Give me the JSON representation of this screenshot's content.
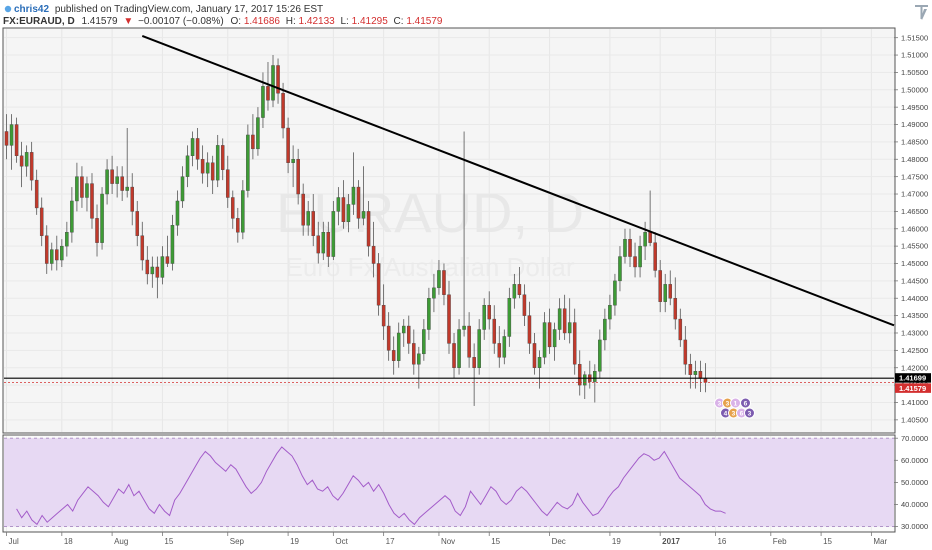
{
  "header": {
    "user": "chris42",
    "published": "published on TradingView.com, January 17, 2017 15:26 EST",
    "symbol": "FX:EURAUD, D",
    "last": "1.41579",
    "change": "−0.00107 (−0.08%)",
    "o_label": "O:",
    "o_value": "1.41686",
    "h_label": "H:",
    "h_value": "1.42133",
    "l_label": "L:",
    "l_value": "1.41295",
    "c_label": "C:",
    "c_value": "1.41579"
  },
  "watermark": {
    "symbol": "EURAUD, D",
    "name": "Euro Fx/Australian Dollar"
  },
  "colors": {
    "up": "#3d9b35",
    "down": "#c0392b",
    "trendline": "#000000",
    "rsi_line": "#a35cc9",
    "rsi_band": "#e7d9f3",
    "price_tag_dark": "#000000",
    "price_tag_red": "#d32f2f",
    "header_down": "#d32f2f"
  },
  "chart_data": [
    {
      "type": "candlestick",
      "title": "",
      "xlabel": "",
      "ylabel": "",
      "ylim": [
        1.4015,
        1.5175
      ],
      "y_ticks": [
        1.405,
        1.41,
        1.415,
        1.42,
        1.425,
        1.43,
        1.435,
        1.44,
        1.445,
        1.45,
        1.455,
        1.46,
        1.465,
        1.47,
        1.475,
        1.48,
        1.485,
        1.49,
        1.495,
        1.5,
        1.505,
        1.51,
        1.515
      ],
      "x_ticks": [
        {
          "label": "Jul",
          "i": 0
        },
        {
          "label": "18",
          "i": 11
        },
        {
          "label": "Aug",
          "i": 21
        },
        {
          "label": "15",
          "i": 31
        },
        {
          "label": "Sep",
          "i": 44
        },
        {
          "label": "19",
          "i": 56
        },
        {
          "label": "Oct",
          "i": 65
        },
        {
          "label": "17",
          "i": 75
        },
        {
          "label": "Nov",
          "i": 86
        },
        {
          "label": "15",
          "i": 96
        },
        {
          "label": "Dec",
          "i": 108
        },
        {
          "label": "19",
          "i": 120
        },
        {
          "label": "2017",
          "i": 130
        },
        {
          "label": "16",
          "i": 141
        },
        {
          "label": "Feb",
          "i": 152
        },
        {
          "label": "15",
          "i": 162
        },
        {
          "label": "Mar",
          "i": 172
        }
      ],
      "x_count": 177,
      "candles": [
        [
          1.488,
          1.493,
          1.48,
          1.484
        ],
        [
          1.484,
          1.493,
          1.477,
          1.49
        ],
        [
          1.49,
          1.492,
          1.479,
          1.481
        ],
        [
          1.481,
          1.485,
          1.472,
          1.478
        ],
        [
          1.478,
          1.484,
          1.475,
          1.482
        ],
        [
          1.482,
          1.485,
          1.471,
          1.474
        ],
        [
          1.474,
          1.477,
          1.464,
          1.466
        ],
        [
          1.466,
          1.469,
          1.455,
          1.458
        ],
        [
          1.458,
          1.461,
          1.447,
          1.45
        ],
        [
          1.45,
          1.456,
          1.448,
          1.454
        ],
        [
          1.454,
          1.458,
          1.448,
          1.451
        ],
        [
          1.451,
          1.457,
          1.449,
          1.455
        ],
        [
          1.455,
          1.462,
          1.452,
          1.459
        ],
        [
          1.459,
          1.472,
          1.456,
          1.468
        ],
        [
          1.468,
          1.479,
          1.465,
          1.475
        ],
        [
          1.475,
          1.478,
          1.466,
          1.469
        ],
        [
          1.469,
          1.475,
          1.465,
          1.473
        ],
        [
          1.473,
          1.476,
          1.46,
          1.463
        ],
        [
          1.463,
          1.467,
          1.452,
          1.456
        ],
        [
          1.456,
          1.472,
          1.454,
          1.47
        ],
        [
          1.47,
          1.48,
          1.467,
          1.477
        ],
        [
          1.477,
          1.481,
          1.47,
          1.473
        ],
        [
          1.473,
          1.478,
          1.469,
          1.475
        ],
        [
          1.475,
          1.478,
          1.468,
          1.471
        ],
        [
          1.471,
          1.489,
          1.469,
          1.472
        ],
        [
          1.472,
          1.476,
          1.461,
          1.465
        ],
        [
          1.465,
          1.468,
          1.455,
          1.458
        ],
        [
          1.458,
          1.462,
          1.448,
          1.451
        ],
        [
          1.451,
          1.455,
          1.444,
          1.447
        ],
        [
          1.447,
          1.452,
          1.443,
          1.449
        ],
        [
          1.449,
          1.452,
          1.44,
          1.446
        ],
        [
          1.446,
          1.455,
          1.444,
          1.452
        ],
        [
          1.452,
          1.458,
          1.449,
          1.45
        ],
        [
          1.45,
          1.464,
          1.448,
          1.461
        ],
        [
          1.461,
          1.471,
          1.458,
          1.468
        ],
        [
          1.468,
          1.478,
          1.466,
          1.475
        ],
        [
          1.475,
          1.484,
          1.472,
          1.481
        ],
        [
          1.481,
          1.488,
          1.478,
          1.486
        ],
        [
          1.486,
          1.489,
          1.477,
          1.48
        ],
        [
          1.48,
          1.484,
          1.473,
          1.476
        ],
        [
          1.476,
          1.482,
          1.472,
          1.479
        ],
        [
          1.479,
          1.481,
          1.47,
          1.474
        ],
        [
          1.474,
          1.487,
          1.472,
          1.484
        ],
        [
          1.484,
          1.486,
          1.474,
          1.477
        ],
        [
          1.477,
          1.481,
          1.466,
          1.469
        ],
        [
          1.469,
          1.471,
          1.46,
          1.463
        ],
        [
          1.463,
          1.466,
          1.456,
          1.459
        ],
        [
          1.459,
          1.474,
          1.457,
          1.471
        ],
        [
          1.471,
          1.49,
          1.469,
          1.487
        ],
        [
          1.487,
          1.493,
          1.48,
          1.483
        ],
        [
          1.483,
          1.495,
          1.481,
          1.492
        ],
        [
          1.492,
          1.505,
          1.489,
          1.501
        ],
        [
          1.501,
          1.508,
          1.494,
          1.497
        ],
        [
          1.497,
          1.51,
          1.495,
          1.507
        ],
        [
          1.507,
          1.509,
          1.496,
          1.499
        ],
        [
          1.499,
          1.502,
          1.486,
          1.489
        ],
        [
          1.489,
          1.492,
          1.476,
          1.479
        ],
        [
          1.479,
          1.484,
          1.472,
          1.48
        ],
        [
          1.48,
          1.483,
          1.467,
          1.47
        ],
        [
          1.47,
          1.473,
          1.458,
          1.461
        ],
        [
          1.461,
          1.468,
          1.458,
          1.465
        ],
        [
          1.465,
          1.47,
          1.455,
          1.458
        ],
        [
          1.458,
          1.462,
          1.45,
          1.453
        ],
        [
          1.453,
          1.462,
          1.451,
          1.459
        ],
        [
          1.459,
          1.462,
          1.449,
          1.452
        ],
        [
          1.452,
          1.468,
          1.451,
          1.465
        ],
        [
          1.465,
          1.472,
          1.461,
          1.469
        ],
        [
          1.469,
          1.474,
          1.46,
          1.462
        ],
        [
          1.462,
          1.47,
          1.459,
          1.467
        ],
        [
          1.467,
          1.482,
          1.464,
          1.472
        ],
        [
          1.472,
          1.474,
          1.46,
          1.463
        ],
        [
          1.463,
          1.478,
          1.461,
          1.465
        ],
        [
          1.465,
          1.468,
          1.452,
          1.455
        ],
        [
          1.455,
          1.462,
          1.446,
          1.45
        ],
        [
          1.45,
          1.453,
          1.435,
          1.438
        ],
        [
          1.438,
          1.444,
          1.428,
          1.432
        ],
        [
          1.432,
          1.436,
          1.422,
          1.425
        ],
        [
          1.425,
          1.429,
          1.418,
          1.422
        ],
        [
          1.422,
          1.433,
          1.42,
          1.43
        ],
        [
          1.43,
          1.434,
          1.426,
          1.432
        ],
        [
          1.432,
          1.435,
          1.424,
          1.427
        ],
        [
          1.427,
          1.431,
          1.418,
          1.421
        ],
        [
          1.421,
          1.426,
          1.414,
          1.424
        ],
        [
          1.424,
          1.434,
          1.422,
          1.431
        ],
        [
          1.431,
          1.443,
          1.428,
          1.44
        ],
        [
          1.44,
          1.447,
          1.436,
          1.443
        ],
        [
          1.443,
          1.451,
          1.441,
          1.448
        ],
        [
          1.448,
          1.45,
          1.438,
          1.441
        ],
        [
          1.441,
          1.445,
          1.424,
          1.427
        ],
        [
          1.427,
          1.43,
          1.417,
          1.42
        ],
        [
          1.42,
          1.434,
          1.418,
          1.431
        ],
        [
          1.431,
          1.488,
          1.429,
          1.432
        ],
        [
          1.432,
          1.436,
          1.42,
          1.423
        ],
        [
          1.423,
          1.427,
          1.409,
          1.42
        ],
        [
          1.42,
          1.434,
          1.418,
          1.431
        ],
        [
          1.431,
          1.44,
          1.428,
          1.438
        ],
        [
          1.438,
          1.442,
          1.431,
          1.434
        ],
        [
          1.434,
          1.438,
          1.424,
          1.427
        ],
        [
          1.427,
          1.432,
          1.42,
          1.423
        ],
        [
          1.423,
          1.431,
          1.421,
          1.429
        ],
        [
          1.429,
          1.443,
          1.426,
          1.44
        ],
        [
          1.44,
          1.447,
          1.437,
          1.444
        ],
        [
          1.444,
          1.449,
          1.44,
          1.441
        ],
        [
          1.441,
          1.444,
          1.432,
          1.435
        ],
        [
          1.435,
          1.439,
          1.424,
          1.427
        ],
        [
          1.427,
          1.43,
          1.418,
          1.42
        ],
        [
          1.42,
          1.425,
          1.414,
          1.423
        ],
        [
          1.423,
          1.436,
          1.421,
          1.433
        ],
        [
          1.433,
          1.437,
          1.424,
          1.426
        ],
        [
          1.426,
          1.433,
          1.422,
          1.431
        ],
        [
          1.431,
          1.44,
          1.428,
          1.437
        ],
        [
          1.437,
          1.441,
          1.428,
          1.43
        ],
        [
          1.43,
          1.44,
          1.427,
          1.433
        ],
        [
          1.433,
          1.437,
          1.418,
          1.421
        ],
        [
          1.421,
          1.425,
          1.412,
          1.415
        ],
        [
          1.415,
          1.419,
          1.411,
          1.418
        ],
        [
          1.418,
          1.422,
          1.414,
          1.416
        ],
        [
          1.416,
          1.421,
          1.41,
          1.419
        ],
        [
          1.419,
          1.431,
          1.417,
          1.428
        ],
        [
          1.428,
          1.437,
          1.425,
          1.434
        ],
        [
          1.434,
          1.441,
          1.431,
          1.438
        ],
        [
          1.438,
          1.447,
          1.435,
          1.445
        ],
        [
          1.445,
          1.455,
          1.442,
          1.452
        ],
        [
          1.452,
          1.46,
          1.45,
          1.457
        ],
        [
          1.457,
          1.46,
          1.449,
          1.452
        ],
        [
          1.452,
          1.456,
          1.446,
          1.449
        ],
        [
          1.449,
          1.458,
          1.446,
          1.455
        ],
        [
          1.455,
          1.462,
          1.451,
          1.459
        ],
        [
          1.459,
          1.471,
          1.455,
          1.456
        ],
        [
          1.456,
          1.459,
          1.446,
          1.448
        ],
        [
          1.448,
          1.451,
          1.436,
          1.439
        ],
        [
          1.439,
          1.447,
          1.436,
          1.444
        ],
        [
          1.444,
          1.448,
          1.438,
          1.44
        ],
        [
          1.44,
          1.446,
          1.431,
          1.434
        ],
        [
          1.434,
          1.437,
          1.426,
          1.428
        ],
        [
          1.428,
          1.432,
          1.418,
          1.421
        ],
        [
          1.421,
          1.424,
          1.414,
          1.418
        ],
        [
          1.418,
          1.422,
          1.414,
          1.419
        ],
        [
          1.419,
          1.422,
          1.413,
          1.4169
        ],
        [
          1.41686,
          1.42133,
          1.41295,
          1.41579
        ]
      ],
      "trendline": [
        {
          "i": 27,
          "y": 1.5155
        },
        {
          "i": 176.5,
          "y": 1.4322
        }
      ],
      "horizontal_line": 1.41699,
      "last_price": 1.41579,
      "price_labels": [
        {
          "text": "1.41699",
          "value": 1.41699,
          "style": "dark"
        },
        {
          "text": "1.41579",
          "value": 1.41579,
          "style": "red"
        }
      ]
    },
    {
      "type": "line",
      "title": "",
      "name": "",
      "ylim": [
        28,
        71
      ],
      "y_ticks": [
        30,
        40,
        50,
        60,
        70
      ],
      "y_tick_labels": [
        "30.0000",
        "40.0000",
        "50.0000",
        "60.0000",
        "70.0000"
      ],
      "band": [
        30,
        70
      ],
      "values": [
        38,
        34,
        37,
        33,
        31,
        35,
        32,
        34,
        36,
        38,
        40,
        37,
        42,
        45,
        48,
        46,
        44,
        41,
        39,
        43,
        47,
        45,
        49,
        44,
        46,
        42,
        38,
        36,
        40,
        37,
        35,
        42,
        45,
        49,
        53,
        57,
        61,
        64,
        62,
        59,
        57,
        55,
        58,
        56,
        52,
        48,
        45,
        47,
        50,
        55,
        59,
        63,
        66,
        64,
        62,
        58,
        53,
        49,
        51,
        47,
        46,
        48,
        44,
        42,
        45,
        49,
        53,
        51,
        48,
        50,
        46,
        49,
        45,
        40,
        36,
        34,
        36,
        33,
        31,
        34,
        36,
        38,
        40,
        42,
        44,
        42,
        37,
        35,
        39,
        46,
        43,
        40,
        44,
        48,
        46,
        42,
        40,
        42,
        46,
        48,
        46,
        43,
        40,
        37,
        35,
        38,
        41,
        39,
        38,
        40,
        45,
        41,
        38,
        35,
        36,
        39,
        43,
        46,
        48,
        52,
        55,
        58,
        61,
        63,
        62,
        60,
        61,
        64,
        60,
        56,
        52,
        50,
        48,
        46,
        44,
        40,
        38,
        37,
        37,
        36
      ]
    }
  ],
  "event_badges": [
    "3",
    "3",
    "1",
    "6",
    "4",
    "3",
    "6",
    "3"
  ]
}
